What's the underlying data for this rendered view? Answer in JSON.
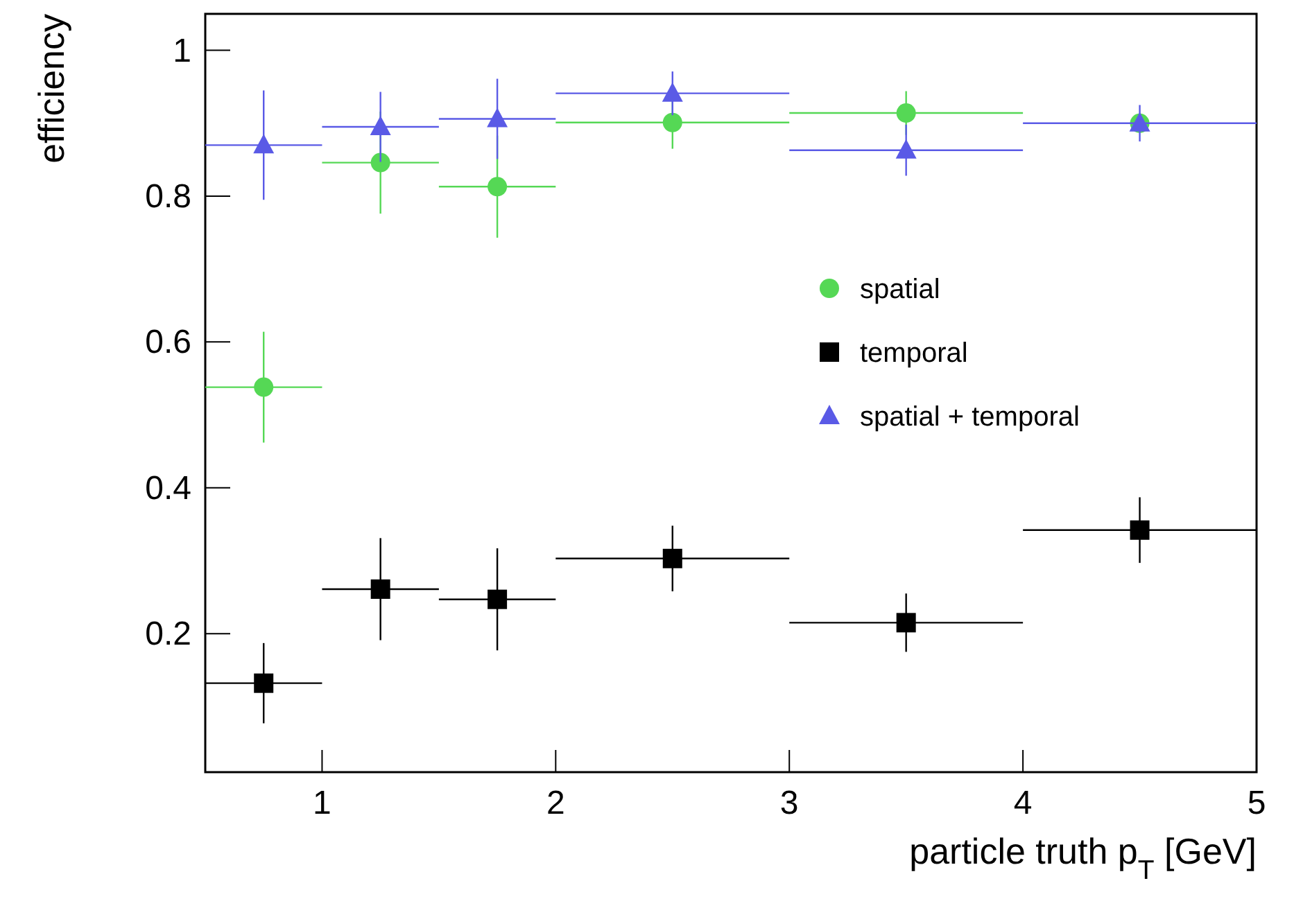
{
  "chart_data": {
    "type": "scatter",
    "xlabel": "particle truth p$_{T}$ [GeV]",
    "ylabel": "efficiency",
    "x": [
      0.75,
      1.25,
      1.75,
      2.5,
      3.5,
      4.5
    ],
    "xlim": [
      0.5,
      5
    ],
    "ylim": [
      0.01,
      1.05
    ],
    "xticks": [
      1,
      2,
      3,
      4,
      5
    ],
    "yticks": [
      0.2,
      0.4,
      0.6,
      0.8,
      {
        "value": 1,
        "label": "1"
      }
    ],
    "grid": false,
    "legend": "right",
    "series": [
      {
        "name": "spatial",
        "color": "#55d855",
        "marker": "circle",
        "values": [
          0.538,
          0.846,
          0.813,
          0.901,
          0.914,
          0.9
        ],
        "errors": [
          0.076,
          0.07,
          0.07,
          0.036,
          0.03,
          null
        ],
        "xerrors": [
          0.25,
          0.25,
          0.25,
          0.5,
          0.5,
          null
        ]
      },
      {
        "name": "temporal",
        "color": "#000000",
        "marker": "square",
        "values": [
          0.132,
          0.261,
          0.247,
          0.303,
          0.215,
          0.342
        ],
        "errors": [
          0.055,
          0.07,
          0.07,
          0.045,
          0.04,
          0.045
        ],
        "xerrors": [
          0.25,
          0.25,
          0.25,
          0.5,
          0.5,
          0.5
        ]
      },
      {
        "name": "spatial + temporal",
        "color": "#5a5ae6",
        "marker": "triangle",
        "values": [
          0.87,
          0.895,
          0.906,
          0.941,
          0.863,
          0.9
        ],
        "errors": [
          0.075,
          0.048,
          0.055,
          0.03,
          0.035,
          0.025
        ],
        "xerrors": [
          0.25,
          0.25,
          0.25,
          0.5,
          0.5,
          0.5
        ]
      }
    ]
  }
}
